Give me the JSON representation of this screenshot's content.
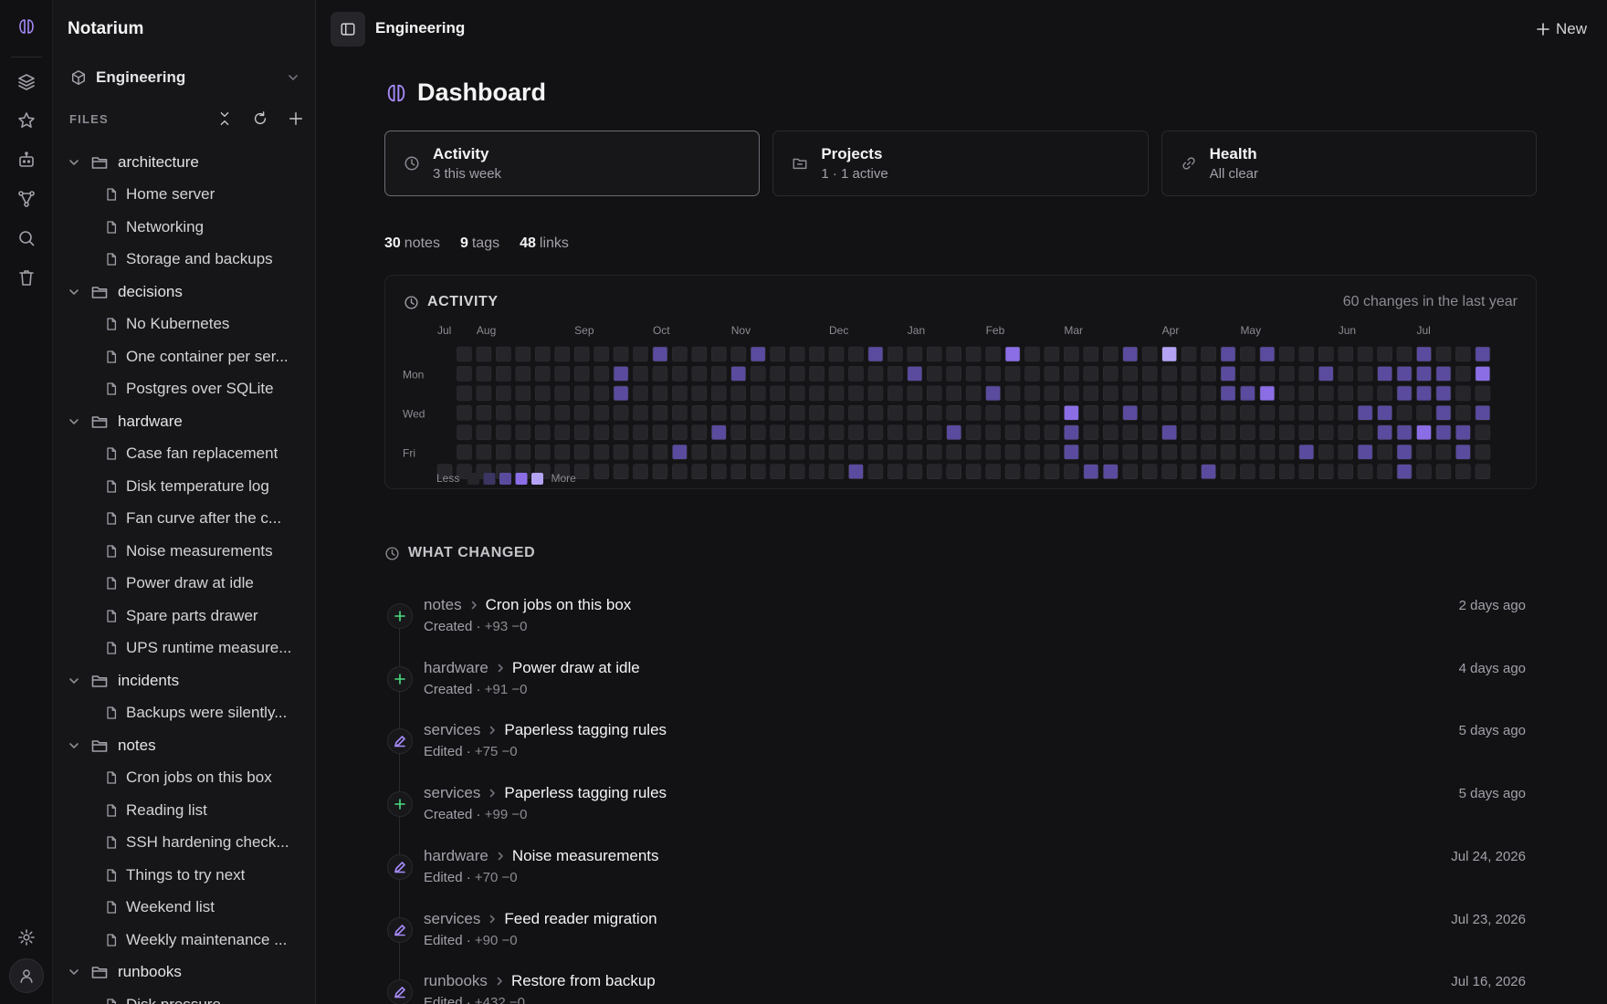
{
  "app": {
    "name": "Notarium"
  },
  "workspace": {
    "name": "Engineering"
  },
  "files": {
    "title": "FILES",
    "tree": [
      {
        "type": "folder",
        "label": "architecture"
      },
      {
        "type": "file",
        "label": "Home server"
      },
      {
        "type": "file",
        "label": "Networking"
      },
      {
        "type": "file",
        "label": "Storage and backups"
      },
      {
        "type": "folder",
        "label": "decisions"
      },
      {
        "type": "file",
        "label": "No Kubernetes"
      },
      {
        "type": "file",
        "label": "One container per ser..."
      },
      {
        "type": "file",
        "label": "Postgres over SQLite"
      },
      {
        "type": "folder",
        "label": "hardware"
      },
      {
        "type": "file",
        "label": "Case fan replacement"
      },
      {
        "type": "file",
        "label": "Disk temperature log"
      },
      {
        "type": "file",
        "label": "Fan curve after the c..."
      },
      {
        "type": "file",
        "label": "Noise measurements"
      },
      {
        "type": "file",
        "label": "Power draw at idle"
      },
      {
        "type": "file",
        "label": "Spare parts drawer"
      },
      {
        "type": "file",
        "label": "UPS runtime measure..."
      },
      {
        "type": "folder",
        "label": "incidents"
      },
      {
        "type": "file",
        "label": "Backups were silently..."
      },
      {
        "type": "folder",
        "label": "notes"
      },
      {
        "type": "file",
        "label": "Cron jobs on this box"
      },
      {
        "type": "file",
        "label": "Reading list"
      },
      {
        "type": "file",
        "label": "SSH hardening check..."
      },
      {
        "type": "file",
        "label": "Things to try next"
      },
      {
        "type": "file",
        "label": "Weekend list"
      },
      {
        "type": "file",
        "label": "Weekly maintenance ..."
      },
      {
        "type": "folder",
        "label": "runbooks"
      },
      {
        "type": "file",
        "label": "Disk pressure"
      }
    ]
  },
  "topbar": {
    "breadcrumb": "Engineering",
    "new_label": "New"
  },
  "page": {
    "title": "Dashboard"
  },
  "cards": [
    {
      "title": "Activity",
      "subtitle": "3 this week",
      "icon": "clock-icon"
    },
    {
      "title": "Projects",
      "subtitle": "1 · 1 active",
      "icon": "folder-icon"
    },
    {
      "title": "Health",
      "subtitle": "All clear",
      "icon": "link-icon"
    }
  ],
  "stats": {
    "notes_count": "30",
    "notes_label": "notes",
    "tags_count": "9",
    "tags_label": "tags",
    "links_count": "48",
    "links_label": "links"
  },
  "activity": {
    "title": "ACTIVITY",
    "summary": "60 changes in the last year",
    "months": [
      "Jul",
      "Aug",
      "Sep",
      "Oct",
      "Nov",
      "Dec",
      "Jan",
      "Feb",
      "Mar",
      "Apr",
      "May",
      "Jun",
      "Jul"
    ],
    "month_week_index": [
      0,
      2,
      7,
      11,
      15,
      20,
      24,
      28,
      32,
      37,
      41,
      46,
      50
    ],
    "day_labels": [
      "Mon",
      "Wed",
      "Fri"
    ],
    "legend_less": "Less",
    "legend_more": "More",
    "level_colors": [
      "#25252a",
      "#3b3561",
      "#5b4b9e",
      "#8b6ee6",
      "#b4a3f5"
    ],
    "active_cells": [
      [
        11,
        0,
        2
      ],
      [
        16,
        0,
        2
      ],
      [
        22,
        0,
        2
      ],
      [
        29,
        0,
        3
      ],
      [
        35,
        0,
        2
      ],
      [
        37,
        0,
        4
      ],
      [
        40,
        0,
        2
      ],
      [
        42,
        0,
        2
      ],
      [
        50,
        0,
        2
      ],
      [
        53,
        0,
        2
      ],
      [
        9,
        1,
        2
      ],
      [
        15,
        1,
        2
      ],
      [
        24,
        1,
        2
      ],
      [
        40,
        1,
        2
      ],
      [
        45,
        1,
        2
      ],
      [
        48,
        1,
        2
      ],
      [
        49,
        1,
        2
      ],
      [
        50,
        1,
        2
      ],
      [
        51,
        1,
        2
      ],
      [
        53,
        1,
        3
      ],
      [
        9,
        2,
        2
      ],
      [
        28,
        2,
        2
      ],
      [
        40,
        2,
        2
      ],
      [
        41,
        2,
        2
      ],
      [
        42,
        2,
        3
      ],
      [
        49,
        2,
        2
      ],
      [
        50,
        2,
        2
      ],
      [
        51,
        2,
        2
      ],
      [
        32,
        3,
        3
      ],
      [
        35,
        3,
        2
      ],
      [
        47,
        3,
        2
      ],
      [
        48,
        3,
        2
      ],
      [
        51,
        3,
        2
      ],
      [
        53,
        3,
        2
      ],
      [
        14,
        4,
        2
      ],
      [
        26,
        4,
        2
      ],
      [
        32,
        4,
        2
      ],
      [
        37,
        4,
        2
      ],
      [
        48,
        4,
        2
      ],
      [
        49,
        4,
        2
      ],
      [
        50,
        4,
        3
      ],
      [
        51,
        4,
        2
      ],
      [
        52,
        4,
        2
      ],
      [
        12,
        5,
        2
      ],
      [
        32,
        5,
        2
      ],
      [
        44,
        5,
        2
      ],
      [
        47,
        5,
        2
      ],
      [
        49,
        5,
        2
      ],
      [
        52,
        5,
        2
      ],
      [
        21,
        6,
        2
      ],
      [
        33,
        6,
        2
      ],
      [
        34,
        6,
        2
      ],
      [
        39,
        6,
        2
      ],
      [
        49,
        6,
        2
      ]
    ]
  },
  "changes": {
    "title": "WHAT CHANGED",
    "items": [
      {
        "folder": "notes",
        "note": "Cron jobs on this box",
        "action": "Created",
        "diff": "+93 −0",
        "when": "2 days ago",
        "kind": "created"
      },
      {
        "folder": "hardware",
        "note": "Power draw at idle",
        "action": "Created",
        "diff": "+91 −0",
        "when": "4 days ago",
        "kind": "created"
      },
      {
        "folder": "services",
        "note": "Paperless tagging rules",
        "action": "Edited",
        "diff": "+75 −0",
        "when": "5 days ago",
        "kind": "edited"
      },
      {
        "folder": "services",
        "note": "Paperless tagging rules",
        "action": "Created",
        "diff": "+99 −0",
        "when": "5 days ago",
        "kind": "created"
      },
      {
        "folder": "hardware",
        "note": "Noise measurements",
        "action": "Edited",
        "diff": "+70 −0",
        "when": "Jul 24, 2026",
        "kind": "edited"
      },
      {
        "folder": "services",
        "note": "Feed reader migration",
        "action": "Edited",
        "diff": "+90 −0",
        "when": "Jul 23, 2026",
        "kind": "edited"
      },
      {
        "folder": "runbooks",
        "note": "Restore from backup",
        "action": "Edited",
        "diff": "+432 −0",
        "when": "Jul 16, 2026",
        "kind": "edited"
      }
    ]
  },
  "colors": {
    "accent": "#a78bfa",
    "created": "#4ade80",
    "background": "#121214",
    "sidebar": "#161618"
  }
}
